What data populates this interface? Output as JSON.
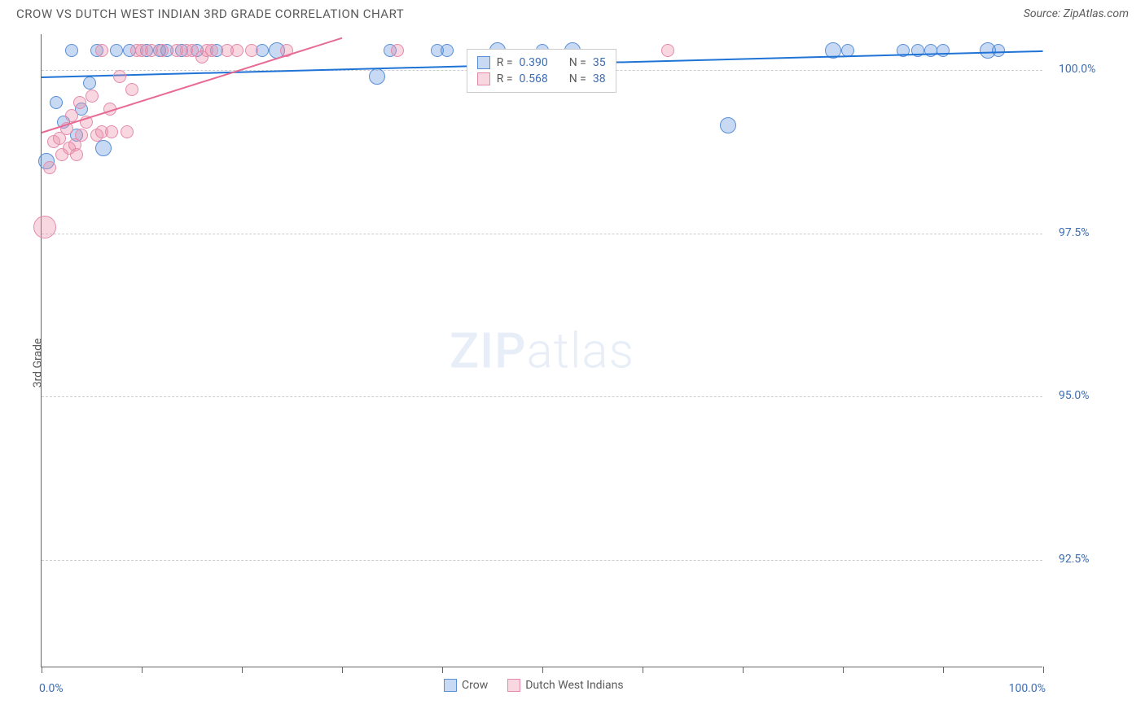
{
  "header": {
    "title": "CROW VS DUTCH WEST INDIAN 3RD GRADE CORRELATION CHART",
    "source": "Source: ZipAtlas.com"
  },
  "chart": {
    "type": "scatter",
    "y_axis_label": "3rd Grade",
    "xlim": [
      0,
      100
    ],
    "ylim": [
      90.85,
      100.55
    ],
    "x_ticks": [
      0,
      10,
      20,
      30,
      40,
      50,
      60,
      70,
      80,
      90,
      100
    ],
    "x_tick_labels": {
      "0": "0.0%",
      "100": "100.0%"
    },
    "y_gridlines": [
      92.5,
      95.0,
      97.5,
      100.0
    ],
    "y_tick_labels": {
      "92.5": "92.5%",
      "95.0": "95.0%",
      "97.5": "97.5%",
      "100.0": "100.0%"
    },
    "background_color": "#ffffff",
    "grid_color": "#cccccc",
    "axis_color": "#666666",
    "tick_label_color": "#3b6db5",
    "watermark": {
      "text_bold": "ZIP",
      "text_light": "atlas",
      "color": "#e8eef7"
    },
    "series": [
      {
        "name": "Crow",
        "color_fill": "rgba(96,148,220,0.35)",
        "color_stroke": "#5a8fd6",
        "trend_color": "#1f73d6",
        "trend": {
          "x1": 0,
          "y1": 99.9,
          "x2": 100,
          "y2": 100.3
        },
        "R": "0.390",
        "N": "35",
        "points": [
          {
            "x": 0.5,
            "y": 98.6,
            "r": 10
          },
          {
            "x": 1.5,
            "y": 99.5,
            "r": 8
          },
          {
            "x": 2.2,
            "y": 99.2,
            "r": 8
          },
          {
            "x": 3.0,
            "y": 100.3,
            "r": 8
          },
          {
            "x": 3.5,
            "y": 99.0,
            "r": 8
          },
          {
            "x": 4.0,
            "y": 99.4,
            "r": 8
          },
          {
            "x": 4.8,
            "y": 99.8,
            "r": 8
          },
          {
            "x": 5.5,
            "y": 100.3,
            "r": 8
          },
          {
            "x": 6.2,
            "y": 98.8,
            "r": 10
          },
          {
            "x": 7.5,
            "y": 100.3,
            "r": 8
          },
          {
            "x": 8.8,
            "y": 100.3,
            "r": 8
          },
          {
            "x": 10.5,
            "y": 100.3,
            "r": 8
          },
          {
            "x": 11.8,
            "y": 100.3,
            "r": 8
          },
          {
            "x": 12.5,
            "y": 100.3,
            "r": 8
          },
          {
            "x": 14.0,
            "y": 100.3,
            "r": 8
          },
          {
            "x": 15.5,
            "y": 100.3,
            "r": 8
          },
          {
            "x": 17.5,
            "y": 100.3,
            "r": 8
          },
          {
            "x": 22.0,
            "y": 100.3,
            "r": 8
          },
          {
            "x": 23.5,
            "y": 100.3,
            "r": 10
          },
          {
            "x": 33.5,
            "y": 99.9,
            "r": 10
          },
          {
            "x": 34.8,
            "y": 100.3,
            "r": 8
          },
          {
            "x": 39.5,
            "y": 100.3,
            "r": 8
          },
          {
            "x": 40.5,
            "y": 100.3,
            "r": 8
          },
          {
            "x": 45.5,
            "y": 100.3,
            "r": 10
          },
          {
            "x": 50.0,
            "y": 100.3,
            "r": 8
          },
          {
            "x": 53.0,
            "y": 100.3,
            "r": 10
          },
          {
            "x": 68.5,
            "y": 99.15,
            "r": 10
          },
          {
            "x": 79.0,
            "y": 100.3,
            "r": 10
          },
          {
            "x": 80.5,
            "y": 100.3,
            "r": 8
          },
          {
            "x": 86.0,
            "y": 100.3,
            "r": 8
          },
          {
            "x": 87.5,
            "y": 100.3,
            "r": 8
          },
          {
            "x": 88.8,
            "y": 100.3,
            "r": 8
          },
          {
            "x": 90.0,
            "y": 100.3,
            "r": 8
          },
          {
            "x": 94.5,
            "y": 100.3,
            "r": 10
          },
          {
            "x": 95.5,
            "y": 100.3,
            "r": 8
          }
        ]
      },
      {
        "name": "Dutch West Indians",
        "color_fill": "rgba(236,140,170,0.35)",
        "color_stroke": "#e48aab",
        "trend_color": "#e86b94",
        "trend": {
          "x1": 0,
          "y1": 99.05,
          "x2": 30,
          "y2": 100.5
        },
        "R": "0.568",
        "N": "38",
        "points": [
          {
            "x": 0.3,
            "y": 97.6,
            "r": 14
          },
          {
            "x": 0.8,
            "y": 98.5,
            "r": 8
          },
          {
            "x": 1.2,
            "y": 98.9,
            "r": 8
          },
          {
            "x": 1.8,
            "y": 98.95,
            "r": 8
          },
          {
            "x": 2.0,
            "y": 98.7,
            "r": 8
          },
          {
            "x": 2.5,
            "y": 99.1,
            "r": 8
          },
          {
            "x": 2.8,
            "y": 98.8,
            "r": 8
          },
          {
            "x": 3.0,
            "y": 99.3,
            "r": 8
          },
          {
            "x": 3.3,
            "y": 98.85,
            "r": 8
          },
          {
            "x": 3.5,
            "y": 98.7,
            "r": 8
          },
          {
            "x": 3.8,
            "y": 99.5,
            "r": 8
          },
          {
            "x": 4.0,
            "y": 99.0,
            "r": 8
          },
          {
            "x": 4.5,
            "y": 99.2,
            "r": 8
          },
          {
            "x": 5.0,
            "y": 99.6,
            "r": 8
          },
          {
            "x": 5.5,
            "y": 99.0,
            "r": 8
          },
          {
            "x": 6.0,
            "y": 99.05,
            "r": 8
          },
          {
            "x": 6.0,
            "y": 100.3,
            "r": 8
          },
          {
            "x": 6.8,
            "y": 99.4,
            "r": 8
          },
          {
            "x": 7.0,
            "y": 99.05,
            "r": 8
          },
          {
            "x": 7.8,
            "y": 99.9,
            "r": 8
          },
          {
            "x": 8.5,
            "y": 99.05,
            "r": 8
          },
          {
            "x": 9.0,
            "y": 99.7,
            "r": 8
          },
          {
            "x": 9.5,
            "y": 100.3,
            "r": 8
          },
          {
            "x": 10.0,
            "y": 100.3,
            "r": 8
          },
          {
            "x": 11.0,
            "y": 100.3,
            "r": 8
          },
          {
            "x": 12.0,
            "y": 100.3,
            "r": 8
          },
          {
            "x": 13.5,
            "y": 100.3,
            "r": 8
          },
          {
            "x": 14.5,
            "y": 100.3,
            "r": 8
          },
          {
            "x": 15.0,
            "y": 100.3,
            "r": 8
          },
          {
            "x": 16.0,
            "y": 100.2,
            "r": 8
          },
          {
            "x": 16.5,
            "y": 100.3,
            "r": 8
          },
          {
            "x": 17.0,
            "y": 100.3,
            "r": 8
          },
          {
            "x": 18.5,
            "y": 100.3,
            "r": 8
          },
          {
            "x": 19.5,
            "y": 100.3,
            "r": 8
          },
          {
            "x": 21.0,
            "y": 100.3,
            "r": 8
          },
          {
            "x": 24.5,
            "y": 100.3,
            "r": 8
          },
          {
            "x": 35.5,
            "y": 100.3,
            "r": 8
          },
          {
            "x": 62.5,
            "y": 100.3,
            "r": 8
          }
        ]
      }
    ],
    "legend_stats": {
      "rows": [
        {
          "swatch_fill": "rgba(96,148,220,0.35)",
          "swatch_stroke": "#5a8fd6",
          "r_label": "R =",
          "r_value": "0.390",
          "n_label": "N =",
          "n_value": "35"
        },
        {
          "swatch_fill": "rgba(236,140,170,0.35)",
          "swatch_stroke": "#e48aab",
          "r_label": "R =",
          "r_value": "0.568",
          "n_label": "N =",
          "n_value": "38"
        }
      ],
      "label_color": "#5a5a5a",
      "value_color": "#3b6db5"
    },
    "bottom_legend": [
      {
        "swatch_fill": "rgba(96,148,220,0.35)",
        "swatch_stroke": "#5a8fd6",
        "label": "Crow"
      },
      {
        "swatch_fill": "rgba(236,140,170,0.35)",
        "swatch_stroke": "#e48aab",
        "label": "Dutch West Indians"
      }
    ]
  }
}
